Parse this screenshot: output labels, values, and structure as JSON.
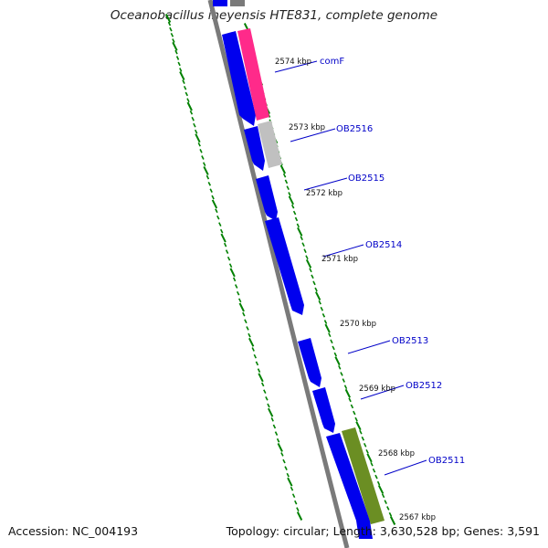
{
  "title": "Oceanobacillus iheyensis HTE831, complete genome",
  "accession": "Accession: NC_004193",
  "summary": "Topology: circular; Length: 3,630,528 bp; Genes: 3,591",
  "colors": {
    "forward_gene": "#0000ee",
    "comF_gene": "#ff2a8a",
    "comF_adjacent_gene": "#c0c0c0",
    "ob2511_adjacent_gene": "#6b8e23",
    "backbone": "#7a7a7a",
    "ticks": "#008000",
    "label_line": "#0000c8"
  },
  "kbp_ticks": [
    "2574 kbp",
    "2573 kbp",
    "2572 kbp",
    "2571 kbp",
    "2570 kbp",
    "2569 kbp",
    "2568 kbp",
    "2567 kbp"
  ],
  "gene_labels": [
    "comF",
    "OB2516",
    "OB2515",
    "OB2514",
    "OB2513",
    "OB2512",
    "OB2511"
  ]
}
